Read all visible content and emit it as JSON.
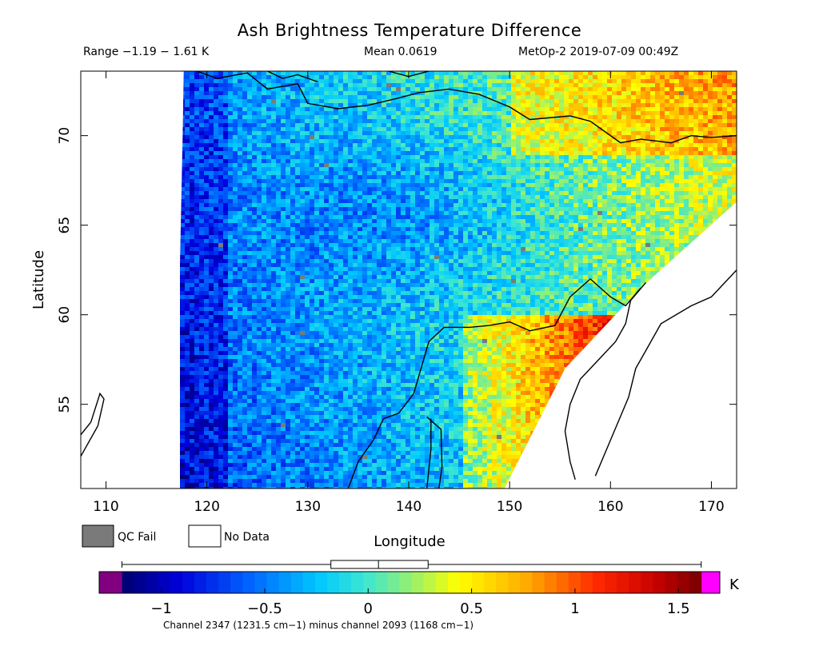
{
  "header": {
    "title": "Ash Brightness Temperature Difference",
    "range": "Range −1.19 − 1.61 K",
    "mean": "Mean 0.0619",
    "satellite_time": "MetOp-2 2019-07-09 00:49Z"
  },
  "legend": {
    "qc_fail_label": "QC Fail",
    "no_data_label": "No Data",
    "qc_fail_color": "#7a7a7a",
    "no_data_color": "#ffffff"
  },
  "colorbar": {
    "unit": "K",
    "ticks": [
      "−1",
      "−0.5",
      "0",
      "0.5",
      "1",
      "1.5"
    ],
    "note": "Channel 2347 (1231.5 cm−1) minus channel 2093 (1168 cm−1)",
    "under_color": "#800080",
    "over_color": "#ff00ff"
  },
  "chart_data": {
    "type": "heatmap",
    "title": "Ash Brightness Temperature Difference",
    "xlabel": "Longitude",
    "ylabel": "Latitude",
    "xlim": [
      107.5,
      172.5
    ],
    "ylim": [
      50.3,
      73.6
    ],
    "xticks": [
      110,
      120,
      130,
      140,
      150,
      160,
      170
    ],
    "yticks": [
      55,
      60,
      65,
      70
    ],
    "colorbar_range": [
      -1.3,
      1.7
    ],
    "colorbar_ticks": [
      -1,
      -0.5,
      0,
      0.5,
      1,
      1.5
    ],
    "value_range": [
      -1.19,
      1.61
    ],
    "mean": 0.0619,
    "boxplot": {
      "min": -1.19,
      "q1": -0.18,
      "median": 0.05,
      "q3": 0.29,
      "max": 1.61
    },
    "swath_outline_lonlat": [
      [
        117.7,
        73.6
      ],
      [
        172.5,
        73.6
      ],
      [
        172.5,
        66.3
      ],
      [
        163,
        61.5
      ],
      [
        155.5,
        57
      ],
      [
        149.5,
        50.3
      ],
      [
        116.5,
        50.3
      ],
      [
        117.3,
        62
      ],
      [
        117.6,
        70
      ]
    ],
    "regions": [
      {
        "region": "western swath edge",
        "value": -0.8
      },
      {
        "region": "central Siberia interior",
        "value": -0.2
      },
      {
        "region": "Arctic coast east",
        "value": 0.6
      },
      {
        "region": "Sea of Okhotsk",
        "value": 0.4
      },
      {
        "region": "east edge near Kamchatka",
        "value": 1.3
      }
    ]
  }
}
